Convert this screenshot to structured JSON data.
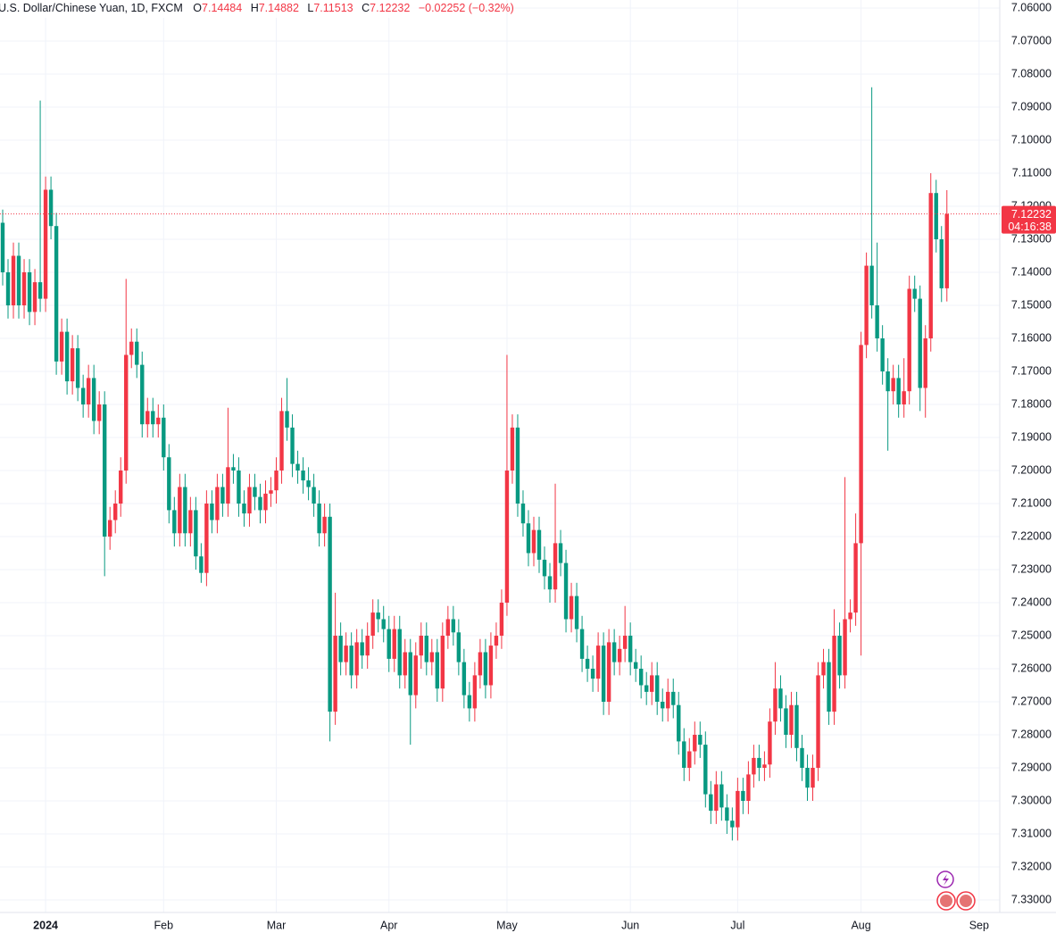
{
  "chart_data": {
    "type": "candlestick",
    "title": "U.S. Dollar/Chinese Yuan, 1D, FXCM",
    "ohlc_letters": [
      "O",
      "H",
      "L",
      "C"
    ],
    "change_label": "−0.02252 (−0.32%)",
    "countdown": "04:16:38",
    "up_color": "#089981",
    "down_color": "#f23645",
    "inverted": true,
    "grid": true,
    "price_line": true,
    "ylim": [
      7.06,
      7.33
    ],
    "yticks": [
      {
        "value": 7.06,
        "label": "7.06000"
      },
      {
        "value": 7.07,
        "label": "7.07000"
      },
      {
        "value": 7.08,
        "label": "7.08000"
      },
      {
        "value": 7.09,
        "label": "7.09000"
      },
      {
        "value": 7.1,
        "label": "7.10000"
      },
      {
        "value": 7.11,
        "label": "7.11000"
      },
      {
        "value": 7.12,
        "label": "7.12000"
      },
      {
        "value": 7.13,
        "label": "7.13000"
      },
      {
        "value": 7.14,
        "label": "7.14000"
      },
      {
        "value": 7.15,
        "label": "7.15000"
      },
      {
        "value": 7.16,
        "label": "7.16000"
      },
      {
        "value": 7.17,
        "label": "7.17000"
      },
      {
        "value": 7.18,
        "label": "7.18000"
      },
      {
        "value": 7.19,
        "label": "7.19000"
      },
      {
        "value": 7.2,
        "label": "7.20000"
      },
      {
        "value": 7.21,
        "label": "7.21000"
      },
      {
        "value": 7.22,
        "label": "7.22000"
      },
      {
        "value": 7.23,
        "label": "7.23000"
      },
      {
        "value": 7.24,
        "label": "7.24000"
      },
      {
        "value": 7.25,
        "label": "7.25000"
      },
      {
        "value": 7.26,
        "label": "7.26000"
      },
      {
        "value": 7.27,
        "label": "7.27000"
      },
      {
        "value": 7.28,
        "label": "7.28000"
      },
      {
        "value": 7.29,
        "label": "7.29000"
      },
      {
        "value": 7.3,
        "label": "7.30000"
      },
      {
        "value": 7.31,
        "label": "7.31000"
      },
      {
        "value": 7.32,
        "label": "7.32000"
      },
      {
        "value": 7.33,
        "label": "7.33000"
      }
    ],
    "categories": [
      null,
      null,
      null,
      null,
      null,
      null,
      null,
      null,
      "2024",
      null,
      null,
      null,
      null,
      null,
      null,
      null,
      null,
      null,
      null,
      null,
      null,
      null,
      null,
      null,
      null,
      null,
      null,
      null,
      null,
      null,
      "Feb",
      null,
      null,
      null,
      null,
      null,
      null,
      null,
      null,
      null,
      null,
      null,
      null,
      null,
      null,
      null,
      null,
      null,
      null,
      null,
      null,
      "Mar",
      null,
      null,
      null,
      null,
      null,
      null,
      null,
      null,
      null,
      null,
      null,
      null,
      null,
      null,
      null,
      null,
      null,
      null,
      null,
      null,
      "Apr",
      null,
      null,
      null,
      null,
      null,
      null,
      null,
      null,
      null,
      null,
      null,
      null,
      null,
      null,
      null,
      null,
      null,
      null,
      null,
      null,
      null,
      "May",
      null,
      null,
      null,
      null,
      null,
      null,
      null,
      null,
      null,
      null,
      null,
      null,
      null,
      null,
      null,
      null,
      null,
      null,
      null,
      null,
      null,
      null,
      "Jun",
      null,
      null,
      null,
      null,
      null,
      null,
      null,
      null,
      null,
      null,
      null,
      null,
      null,
      null,
      null,
      null,
      null,
      null,
      null,
      "Jul",
      null,
      null,
      null,
      null,
      null,
      null,
      null,
      null,
      null,
      null,
      null,
      null,
      null,
      null,
      null,
      null,
      null,
      null,
      null,
      null,
      null,
      null,
      "Aug",
      null,
      null,
      null,
      null,
      null,
      null,
      null,
      null,
      null,
      null,
      null,
      null,
      null,
      null,
      null,
      null,
      null,
      null,
      null,
      null,
      null,
      "Sep"
    ],
    "open": [
      7.125,
      7.14,
      7.15,
      7.135,
      7.15,
      7.14,
      7.152,
      7.143,
      7.148,
      7.115,
      7.126,
      7.167,
      7.158,
      7.173,
      7.163,
      7.175,
      7.18,
      7.172,
      7.185,
      7.18,
      7.22,
      7.215,
      7.21,
      7.2,
      7.165,
      7.161,
      7.168,
      7.186,
      7.182,
      7.186,
      7.184,
      7.196,
      7.212,
      7.219,
      7.205,
      7.219,
      7.212,
      7.226,
      7.231,
      7.21,
      7.215,
      7.205,
      7.21,
      7.199,
      7.2,
      7.21,
      7.213,
      7.205,
      7.208,
      7.212,
      7.207,
      7.206,
      7.2,
      7.182,
      7.187,
      7.198,
      7.2,
      7.203,
      7.205,
      7.21,
      7.219,
      7.214,
      7.273,
      7.25,
      7.258,
      7.253,
      7.262,
      7.252,
      7.256,
      7.25,
      7.243,
      7.245,
      7.248,
      7.257,
      7.248,
      7.262,
      7.255,
      7.268,
      7.256,
      7.25,
      7.258,
      7.255,
      7.266,
      7.25,
      7.245,
      7.249,
      7.258,
      7.268,
      7.272,
      7.262,
      7.255,
      7.265,
      7.253,
      7.25,
      7.24,
      7.2,
      7.187,
      7.21,
      7.216,
      7.225,
      7.218,
      7.227,
      7.232,
      7.236,
      7.222,
      7.228,
      7.245,
      7.238,
      7.248,
      7.257,
      7.26,
      7.263,
      7.253,
      7.27,
      7.252,
      7.258,
      7.254,
      7.25,
      7.258,
      7.26,
      7.265,
      7.267,
      7.262,
      7.27,
      7.272,
      7.267,
      7.271,
      7.282,
      7.29,
      7.285,
      7.28,
      7.283,
      7.298,
      7.303,
      7.295,
      7.302,
      7.306,
      7.308,
      7.297,
      7.3,
      7.292,
      7.287,
      7.29,
      7.289,
      7.276,
      7.266,
      7.272,
      7.28,
      7.271,
      7.284,
      7.29,
      7.296,
      7.29,
      7.262,
      7.258,
      7.273,
      7.25,
      7.262,
      7.245,
      7.243,
      7.222,
      7.162,
      7.138,
      7.15,
      7.16,
      7.17,
      7.176,
      7.172,
      7.18,
      7.176,
      7.145,
      7.148,
      7.175,
      7.16,
      7.116,
      7.13,
      7.14484,
      null,
      null,
      null,
      null,
      null,
      null
    ],
    "high": [
      7.144,
      7.154,
      7.154,
      7.154,
      7.154,
      7.156,
      7.156,
      7.152,
      7.152,
      7.13,
      7.171,
      7.171,
      7.177,
      7.177,
      7.179,
      7.184,
      7.184,
      7.189,
      7.189,
      7.232,
      7.224,
      7.219,
      7.214,
      7.204,
      7.169,
      7.172,
      7.19,
      7.19,
      7.19,
      7.19,
      7.2,
      7.216,
      7.223,
      7.223,
      7.223,
      7.223,
      7.23,
      7.234,
      7.235,
      7.219,
      7.219,
      7.214,
      7.214,
      7.204,
      7.214,
      7.217,
      7.217,
      7.212,
      7.216,
      7.216,
      7.211,
      7.21,
      7.204,
      7.191,
      7.202,
      7.204,
      7.207,
      7.209,
      7.214,
      7.223,
      7.223,
      7.282,
      7.277,
      7.262,
      7.262,
      7.266,
      7.266,
      7.26,
      7.26,
      7.254,
      7.249,
      7.252,
      7.261,
      7.261,
      7.266,
      7.266,
      7.283,
      7.272,
      7.26,
      7.262,
      7.262,
      7.27,
      7.27,
      7.254,
      7.253,
      7.262,
      7.272,
      7.276,
      7.276,
      7.266,
      7.269,
      7.269,
      7.257,
      7.254,
      7.244,
      7.204,
      7.214,
      7.22,
      7.229,
      7.229,
      7.231,
      7.236,
      7.24,
      7.24,
      7.232,
      7.249,
      7.249,
      7.252,
      7.261,
      7.264,
      7.267,
      7.267,
      7.274,
      7.274,
      7.262,
      7.262,
      7.258,
      7.262,
      7.264,
      7.269,
      7.271,
      7.271,
      7.274,
      7.276,
      7.276,
      7.275,
      7.286,
      7.294,
      7.294,
      7.289,
      7.287,
      7.302,
      7.307,
      7.307,
      7.306,
      7.31,
      7.312,
      7.312,
      7.304,
      7.304,
      7.296,
      7.294,
      7.294,
      7.293,
      7.28,
      7.276,
      7.284,
      7.284,
      7.288,
      7.294,
      7.3,
      7.3,
      7.294,
      7.266,
      7.277,
      7.277,
      7.266,
      7.266,
      7.249,
      7.247,
      7.256,
      7.166,
      7.154,
      7.164,
      7.174,
      7.194,
      7.18,
      7.184,
      7.184,
      7.18,
      7.152,
      7.182,
      7.184,
      7.164,
      7.134,
      7.149,
      7.14882,
      null,
      null,
      null,
      null,
      null,
      null
    ],
    "low": [
      7.121,
      7.136,
      7.131,
      7.131,
      7.136,
      7.136,
      7.139,
      7.088,
      7.111,
      7.111,
      7.122,
      7.154,
      7.154,
      7.159,
      7.159,
      7.171,
      7.168,
      7.168,
      7.176,
      7.176,
      7.211,
      7.206,
      7.196,
      7.142,
      7.157,
      7.157,
      7.164,
      7.178,
      7.178,
      7.18,
      7.18,
      7.192,
      7.208,
      7.201,
      7.201,
      7.208,
      7.208,
      7.222,
      7.206,
      7.206,
      7.201,
      7.201,
      7.181,
      7.195,
      7.196,
      7.206,
      7.201,
      7.201,
      7.204,
      7.203,
      7.202,
      7.196,
      7.178,
      7.172,
      7.183,
      7.194,
      7.196,
      7.199,
      7.201,
      7.206,
      7.21,
      7.21,
      7.237,
      7.246,
      7.249,
      7.249,
      7.248,
      7.248,
      7.246,
      7.239,
      7.239,
      7.241,
      7.244,
      7.244,
      7.244,
      7.251,
      7.251,
      7.252,
      7.246,
      7.246,
      7.251,
      7.251,
      7.246,
      7.241,
      7.241,
      7.245,
      7.254,
      7.264,
      7.258,
      7.251,
      7.251,
      7.249,
      7.246,
      7.236,
      7.165,
      7.183,
      7.183,
      7.206,
      7.212,
      7.214,
      7.214,
      7.223,
      7.228,
      7.204,
      7.218,
      7.224,
      7.234,
      7.234,
      7.244,
      7.253,
      7.256,
      7.249,
      7.249,
      7.248,
      7.248,
      7.25,
      7.241,
      7.246,
      7.254,
      7.256,
      7.261,
      7.258,
      7.258,
      7.266,
      7.263,
      7.263,
      7.267,
      7.278,
      7.281,
      7.276,
      7.276,
      7.279,
      7.294,
      7.291,
      7.291,
      7.298,
      7.302,
      7.293,
      7.293,
      7.288,
      7.283,
      7.283,
      7.285,
      7.272,
      7.258,
      7.262,
      7.268,
      7.267,
      7.267,
      7.28,
      7.286,
      7.286,
      7.258,
      7.254,
      7.254,
      7.242,
      7.246,
      7.202,
      7.239,
      7.213,
      7.158,
      7.134,
      7.084,
      7.131,
      7.156,
      7.166,
      7.168,
      7.168,
      7.166,
      7.141,
      7.141,
      7.144,
      7.156,
      7.11,
      7.112,
      7.126,
      7.11513,
      null,
      null,
      null,
      null,
      null,
      null
    ],
    "close": [
      7.14,
      7.15,
      7.135,
      7.15,
      7.14,
      7.152,
      7.143,
      7.148,
      7.115,
      7.126,
      7.167,
      7.158,
      7.173,
      7.163,
      7.175,
      7.18,
      7.172,
      7.185,
      7.18,
      7.22,
      7.215,
      7.21,
      7.2,
      7.165,
      7.161,
      7.168,
      7.186,
      7.182,
      7.186,
      7.184,
      7.196,
      7.212,
      7.219,
      7.205,
      7.219,
      7.212,
      7.226,
      7.231,
      7.21,
      7.215,
      7.205,
      7.21,
      7.199,
      7.2,
      7.21,
      7.213,
      7.205,
      7.208,
      7.212,
      7.207,
      7.206,
      7.2,
      7.182,
      7.187,
      7.198,
      7.2,
      7.203,
      7.205,
      7.21,
      7.219,
      7.214,
      7.273,
      7.25,
      7.258,
      7.253,
      7.262,
      7.252,
      7.256,
      7.25,
      7.243,
      7.245,
      7.248,
      7.257,
      7.248,
      7.262,
      7.255,
      7.268,
      7.256,
      7.25,
      7.258,
      7.255,
      7.266,
      7.25,
      7.245,
      7.249,
      7.258,
      7.268,
      7.272,
      7.262,
      7.255,
      7.265,
      7.253,
      7.25,
      7.24,
      7.2,
      7.187,
      7.21,
      7.216,
      7.225,
      7.218,
      7.227,
      7.232,
      7.236,
      7.222,
      7.228,
      7.245,
      7.238,
      7.248,
      7.257,
      7.26,
      7.263,
      7.253,
      7.27,
      7.252,
      7.258,
      7.254,
      7.25,
      7.258,
      7.26,
      7.265,
      7.267,
      7.262,
      7.27,
      7.272,
      7.267,
      7.271,
      7.282,
      7.29,
      7.285,
      7.28,
      7.283,
      7.298,
      7.303,
      7.295,
      7.302,
      7.306,
      7.308,
      7.297,
      7.3,
      7.292,
      7.287,
      7.29,
      7.289,
      7.276,
      7.266,
      7.272,
      7.28,
      7.271,
      7.284,
      7.29,
      7.296,
      7.29,
      7.262,
      7.258,
      7.273,
      7.25,
      7.262,
      7.245,
      7.243,
      7.222,
      7.162,
      7.138,
      7.15,
      7.16,
      7.17,
      7.176,
      7.172,
      7.18,
      7.176,
      7.145,
      7.148,
      7.175,
      7.16,
      7.116,
      7.13,
      7.14484,
      7.12232,
      null,
      null,
      null,
      null,
      null,
      null
    ]
  }
}
